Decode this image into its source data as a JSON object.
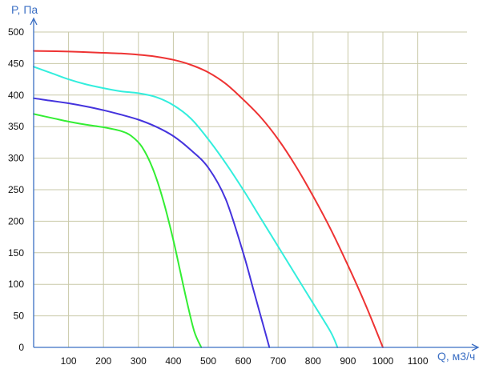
{
  "chart_data": {
    "type": "line",
    "title": "",
    "xlabel": "Q, м3/ч",
    "ylabel": "P, Па",
    "xlim": [
      0,
      1200
    ],
    "ylim": [
      0,
      500
    ],
    "x_ticks": [
      100,
      200,
      300,
      400,
      500,
      600,
      700,
      800,
      900,
      1000,
      1100
    ],
    "y_ticks": [
      0,
      50,
      100,
      150,
      200,
      250,
      300,
      350,
      400,
      450,
      500
    ],
    "grid": true,
    "legend": "none",
    "series": [
      {
        "color": "#33ee33",
        "x": [
          0,
          50,
          100,
          150,
          200,
          250,
          280,
          310,
          340,
          370,
          400,
          420,
          440,
          460,
          480
        ],
        "y": [
          370,
          364,
          358,
          353,
          349,
          343,
          335,
          318,
          285,
          235,
          170,
          120,
          70,
          25,
          0
        ]
      },
      {
        "color": "#4433dd",
        "x": [
          0,
          50,
          100,
          150,
          200,
          250,
          300,
          350,
          400,
          450,
          500,
          550,
          600,
          630,
          660,
          675
        ],
        "y": [
          395,
          391,
          387,
          382,
          376,
          369,
          361,
          350,
          335,
          313,
          285,
          235,
          150,
          90,
          30,
          0
        ]
      },
      {
        "color": "#33eedd",
        "x": [
          0,
          50,
          100,
          150,
          200,
          250,
          300,
          350,
          400,
          450,
          500,
          550,
          600,
          650,
          700,
          750,
          800,
          850,
          870
        ],
        "y": [
          445,
          435,
          425,
          417,
          411,
          406,
          403,
          397,
          384,
          363,
          330,
          292,
          250,
          205,
          160,
          115,
          70,
          25,
          0
        ]
      },
      {
        "color": "#ee3333",
        "x": [
          0,
          100,
          200,
          250,
          300,
          350,
          400,
          450,
          500,
          550,
          600,
          650,
          700,
          750,
          800,
          850,
          900,
          950,
          1000
        ],
        "y": [
          470,
          469,
          467,
          466,
          464,
          461,
          456,
          448,
          436,
          418,
          393,
          365,
          330,
          288,
          240,
          188,
          130,
          68,
          0
        ]
      }
    ]
  }
}
